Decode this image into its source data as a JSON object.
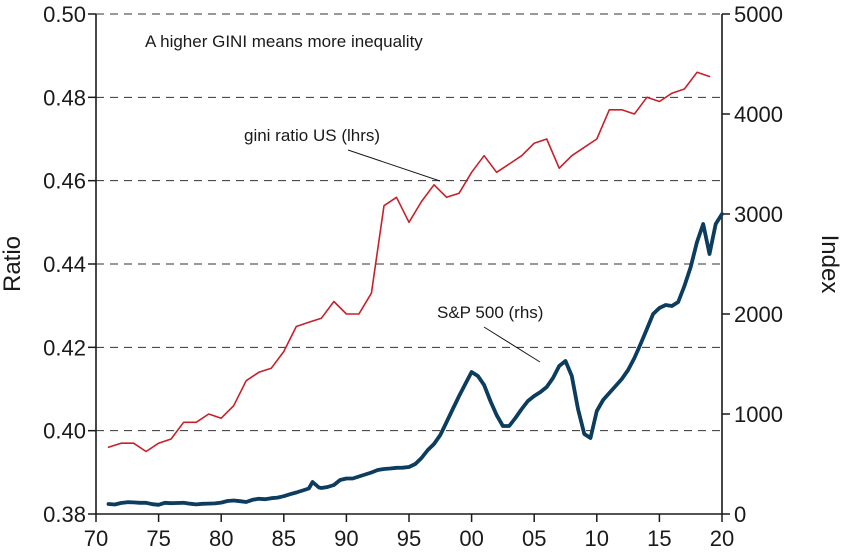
{
  "chart_data": {
    "type": "line",
    "title": "",
    "xlabel": "",
    "ylabel_left": "Ratio",
    "ylabel_right": "Index",
    "annotation_top": "A higher GINI means more inequality",
    "grid": "horizontal dashed",
    "x_range": [
      1970,
      2020
    ],
    "x_ticks": [
      1970,
      1975,
      1980,
      1985,
      1990,
      1995,
      2000,
      2005,
      2010,
      2015,
      2020
    ],
    "x_tick_labels": [
      "70",
      "75",
      "80",
      "85",
      "90",
      "95",
      "00",
      "05",
      "10",
      "15",
      "20"
    ],
    "y_left_range": [
      0.38,
      0.5
    ],
    "y_left_ticks": [
      0.38,
      0.4,
      0.42,
      0.44,
      0.46,
      0.48,
      0.5
    ],
    "y_left_tick_labels": [
      "0.38",
      "0.40",
      "0.42",
      "0.44",
      "0.46",
      "0.48",
      "0.50"
    ],
    "y_right_range": [
      0,
      5000
    ],
    "y_right_ticks": [
      0,
      1000,
      2000,
      3000,
      4000,
      5000
    ],
    "y_right_tick_labels": [
      "0",
      "1000",
      "2000",
      "3000",
      "4000",
      "5000"
    ],
    "series": [
      {
        "name": "gini ratio US (lhrs)",
        "axis": "left",
        "color": "#c8202a",
        "x": [
          1971,
          1972,
          1973,
          1974,
          1975,
          1976,
          1977,
          1978,
          1979,
          1980,
          1981,
          1982,
          1983,
          1984,
          1985,
          1986,
          1987,
          1988,
          1989,
          1990,
          1991,
          1992,
          1993,
          1994,
          1995,
          1996,
          1997,
          1998,
          1999,
          2000,
          2001,
          2002,
          2003,
          2004,
          2005,
          2006,
          2007,
          2008,
          2009,
          2010,
          2011,
          2012,
          2013,
          2014,
          2015,
          2016,
          2017,
          2018,
          2019
        ],
        "values": [
          0.396,
          0.397,
          0.397,
          0.395,
          0.397,
          0.398,
          0.402,
          0.402,
          0.404,
          0.403,
          0.406,
          0.412,
          0.414,
          0.415,
          0.419,
          0.425,
          0.426,
          0.427,
          0.431,
          0.428,
          0.428,
          0.433,
          0.454,
          0.456,
          0.45,
          0.455,
          0.459,
          0.456,
          0.457,
          0.462,
          0.466,
          0.462,
          0.464,
          0.466,
          0.469,
          0.47,
          0.463,
          0.466,
          0.468,
          0.47,
          0.477,
          0.477,
          0.476,
          0.48,
          0.479,
          0.481,
          0.482,
          0.486,
          0.485
        ]
      },
      {
        "name": "S&P 500 (rhs)",
        "axis": "right",
        "color": "#0c3c5e",
        "x": [
          1971.0,
          1971.5,
          1972.0,
          1972.5,
          1973.0,
          1973.5,
          1974.0,
          1974.5,
          1975.0,
          1975.5,
          1976.0,
          1976.5,
          1977.0,
          1977.5,
          1978.0,
          1978.5,
          1979.0,
          1979.5,
          1980.0,
          1980.5,
          1981.0,
          1981.5,
          1982.0,
          1982.5,
          1983.0,
          1983.5,
          1984.0,
          1984.5,
          1985.0,
          1985.5,
          1986.0,
          1986.5,
          1987.0,
          1987.3,
          1987.8,
          1988.0,
          1988.5,
          1989.0,
          1989.5,
          1990.0,
          1990.5,
          1991.0,
          1991.5,
          1992.0,
          1992.5,
          1993.0,
          1993.5,
          1994.0,
          1994.5,
          1995.0,
          1995.5,
          1996.0,
          1996.5,
          1997.0,
          1997.5,
          1998.0,
          1998.5,
          1999.0,
          1999.5,
          2000.0,
          2000.5,
          2001.0,
          2001.5,
          2002.0,
          2002.5,
          2003.0,
          2003.5,
          2004.0,
          2004.5,
          2005.0,
          2005.5,
          2006.0,
          2006.5,
          2007.0,
          2007.5,
          2008.0,
          2008.5,
          2009.0,
          2009.5,
          2010.0,
          2010.5,
          2011.0,
          2011.5,
          2012.0,
          2012.5,
          2013.0,
          2013.5,
          2014.0,
          2014.5,
          2015.0,
          2015.5,
          2016.0,
          2016.5,
          2017.0,
          2017.5,
          2018.0,
          2018.5,
          2019.0,
          2019.5,
          2020.0
        ],
        "values": [
          100,
          95,
          110,
          118,
          116,
          112,
          112,
          98,
          92,
          112,
          108,
          110,
          112,
          103,
          96,
          102,
          104,
          106,
          114,
          130,
          135,
          128,
          120,
          142,
          152,
          148,
          158,
          164,
          178,
          198,
          215,
          235,
          255,
          320,
          265,
          260,
          270,
          290,
          340,
          355,
          355,
          375,
          395,
          415,
          440,
          450,
          455,
          462,
          463,
          470,
          500,
          560,
          640,
          700,
          790,
          920,
          1050,
          1180,
          1300,
          1420,
          1380,
          1290,
          1130,
          990,
          880,
          880,
          960,
          1050,
          1130,
          1180,
          1220,
          1270,
          1360,
          1480,
          1530,
          1380,
          1050,
          800,
          760,
          1030,
          1140,
          1210,
          1280,
          1350,
          1440,
          1560,
          1700,
          1850,
          2000,
          2060,
          2090,
          2080,
          2120,
          2280,
          2470,
          2720,
          2900,
          2600,
          2900,
          3000
        ]
      }
    ],
    "labels": {
      "gini": "gini ratio US (lhrs)",
      "sp500": "S&P 500 (rhs)"
    }
  }
}
